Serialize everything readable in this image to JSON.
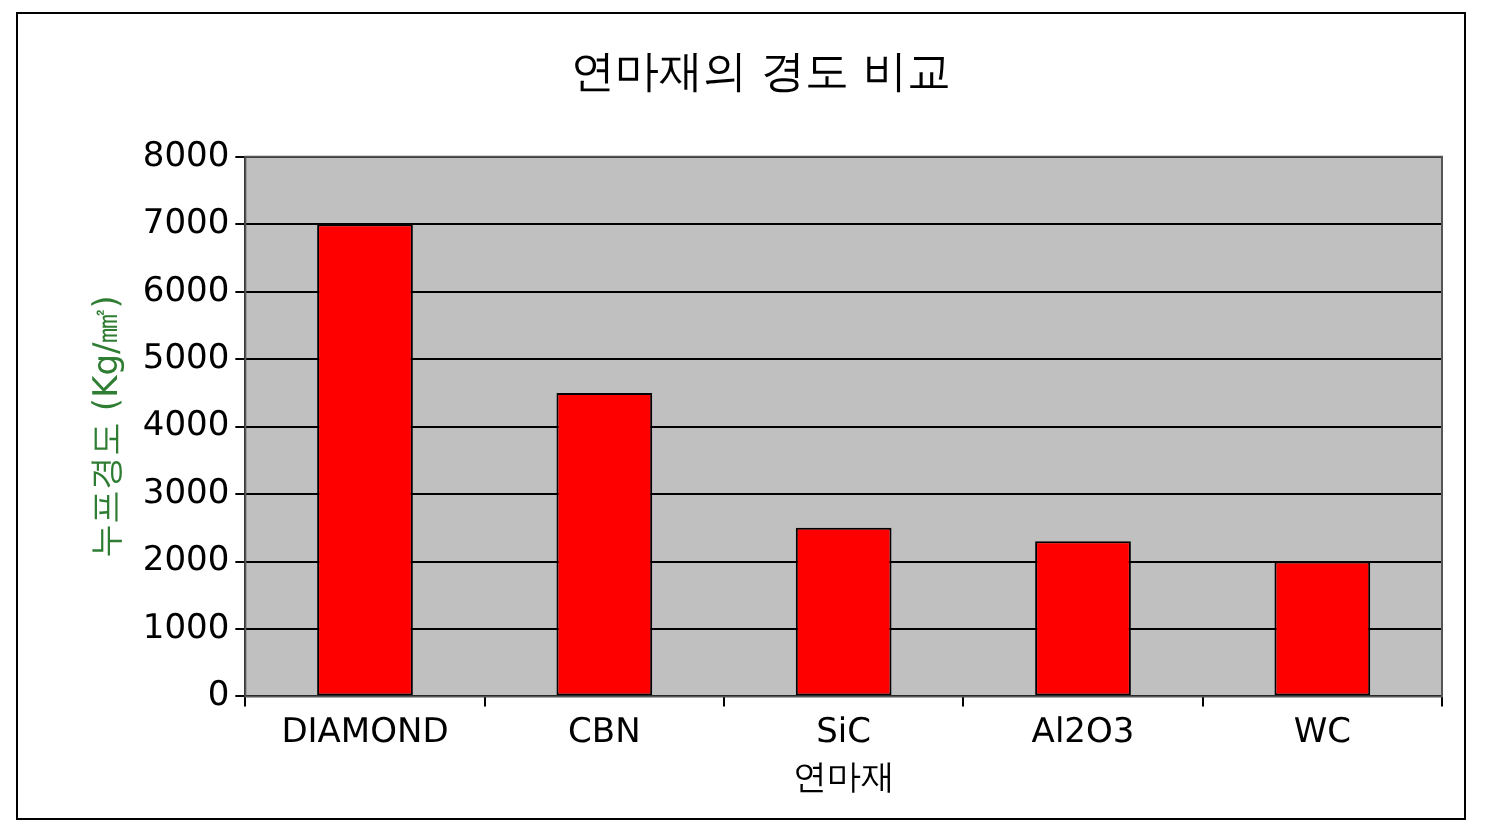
{
  "chart_data": {
    "type": "bar",
    "title": "연마재의 경도 비교",
    "xlabel": "연마재",
    "ylabel": "누프경도 (Kg/㎟)",
    "categories": [
      "DIAMOND",
      "CBN",
      "SiC",
      "Al2O3",
      "WC"
    ],
    "values": [
      7000,
      4500,
      2500,
      2300,
      2000
    ],
    "color": "#ff0000",
    "ylim": [
      0,
      8000
    ],
    "yticks": [
      0,
      1000,
      2000,
      3000,
      4000,
      5000,
      6000,
      7000,
      8000
    ],
    "grid": "y"
  }
}
